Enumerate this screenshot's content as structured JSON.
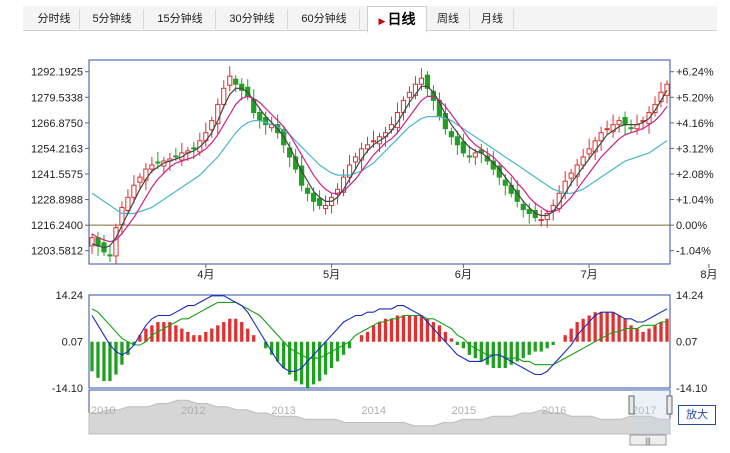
{
  "tabs": [
    {
      "label": "分时线",
      "active": false
    },
    {
      "label": "5分钟线",
      "active": false
    },
    {
      "label": "15分钟线",
      "active": false
    },
    {
      "label": "30分钟线",
      "active": false
    },
    {
      "label": "60分钟线",
      "active": false
    },
    {
      "label": "日线",
      "active": true
    },
    {
      "label": "周线",
      "active": false
    },
    {
      "label": "月线",
      "active": false
    }
  ],
  "zoom_label": "放大",
  "colors": {
    "up": "#e03030",
    "down": "#20a020",
    "ma_dark": "#444444",
    "ma_pink": "#d0208a",
    "ma_cyan": "#4ab8c8",
    "dif": "#1a2cc0",
    "dea": "#16a016",
    "frame": "#3050a0"
  },
  "chart_data": [
    {
      "type": "candlestick",
      "name": "price",
      "ylim": [
        1197,
        1298
      ],
      "y_ticks": [
        "1292.1925",
        "1279.5338",
        "1266.8750",
        "1254.2163",
        "1241.5575",
        "1228.8988",
        "1216.2400",
        "1203.5812"
      ],
      "y_tick_values": [
        1292.1925,
        1279.5338,
        1266.875,
        1254.2163,
        1241.5575,
        1228.8988,
        1216.24,
        1203.5812
      ],
      "pct_ticks": [
        "+6.24%",
        "+5.20%",
        "+4.16%",
        "+3.12%",
        "+2.08%",
        "+1.04%",
        "0.00%",
        "-1.04%"
      ],
      "base_line": 1216.24,
      "x_ticks": [
        {
          "label": "4月",
          "index": 19
        },
        {
          "label": "5月",
          "index": 40
        },
        {
          "label": "6月",
          "index": 62
        },
        {
          "label": "7月",
          "index": 83
        },
        {
          "label": "8月",
          "index": 103
        }
      ],
      "close": [
        1210,
        1206,
        1203,
        1201,
        1215,
        1225,
        1230,
        1236,
        1240,
        1244,
        1246,
        1247,
        1248,
        1249,
        1250,
        1252,
        1253,
        1254,
        1258,
        1262,
        1268,
        1276,
        1284,
        1290,
        1286,
        1283,
        1280,
        1272,
        1268,
        1266,
        1266,
        1262,
        1256,
        1250,
        1244,
        1236,
        1232,
        1228,
        1226,
        1226,
        1230,
        1234,
        1240,
        1246,
        1250,
        1254,
        1256,
        1258,
        1260,
        1262,
        1266,
        1272,
        1278,
        1282,
        1286,
        1289,
        1284,
        1278,
        1270,
        1264,
        1260,
        1256,
        1252,
        1250,
        1252,
        1252,
        1248,
        1244,
        1240,
        1236,
        1232,
        1228,
        1224,
        1222,
        1220,
        1219,
        1222,
        1226,
        1232,
        1238,
        1242,
        1246,
        1250,
        1254,
        1258,
        1262,
        1264,
        1266,
        1268,
        1266,
        1264,
        1266,
        1268,
        1272,
        1276,
        1282,
        1286
      ],
      "ma_dark": [
        1207,
        1206,
        1205,
        1206,
        1210,
        1216,
        1222,
        1228,
        1234,
        1239,
        1243,
        1245,
        1247,
        1248,
        1249,
        1250,
        1252,
        1253,
        1255,
        1258,
        1262,
        1268,
        1275,
        1281,
        1284,
        1284,
        1282,
        1278,
        1274,
        1270,
        1267,
        1264,
        1260,
        1255,
        1249,
        1243,
        1238,
        1233,
        1230,
        1228,
        1228,
        1230,
        1234,
        1239,
        1244,
        1249,
        1253,
        1256,
        1258,
        1260,
        1263,
        1267,
        1272,
        1277,
        1281,
        1285,
        1285,
        1282,
        1277,
        1271,
        1266,
        1262,
        1258,
        1255,
        1253,
        1252,
        1250,
        1247,
        1244,
        1240,
        1236,
        1232,
        1228,
        1225,
        1222,
        1221,
        1221,
        1223,
        1227,
        1232,
        1237,
        1241,
        1245,
        1249,
        1253,
        1257,
        1261,
        1263,
        1265,
        1266,
        1266,
        1266,
        1267,
        1269,
        1273,
        1278,
        1283
      ],
      "ma_pink": [
        1212,
        1210,
        1209,
        1208,
        1209,
        1212,
        1216,
        1220,
        1225,
        1230,
        1235,
        1239,
        1242,
        1245,
        1247,
        1248,
        1249,
        1250,
        1252,
        1254,
        1257,
        1261,
        1266,
        1271,
        1276,
        1279,
        1280,
        1279,
        1277,
        1274,
        1271,
        1268,
        1265,
        1261,
        1256,
        1251,
        1246,
        1241,
        1237,
        1234,
        1232,
        1232,
        1233,
        1236,
        1239,
        1243,
        1247,
        1251,
        1254,
        1257,
        1259,
        1262,
        1266,
        1270,
        1274,
        1278,
        1280,
        1280,
        1278,
        1275,
        1271,
        1267,
        1263,
        1259,
        1256,
        1254,
        1252,
        1250,
        1247,
        1244,
        1241,
        1237,
        1234,
        1230,
        1227,
        1225,
        1223,
        1223,
        1224,
        1227,
        1230,
        1234,
        1238,
        1242,
        1246,
        1250,
        1253,
        1256,
        1259,
        1261,
        1262,
        1263,
        1264,
        1266,
        1268,
        1271,
        1275
      ],
      "ma_cyan": [
        1232,
        1230,
        1228,
        1226,
        1224,
        1222,
        1222,
        1222,
        1223,
        1224,
        1225,
        1227,
        1229,
        1231,
        1233,
        1235,
        1237,
        1239,
        1241,
        1244,
        1247,
        1250,
        1254,
        1258,
        1262,
        1265,
        1267,
        1268,
        1268,
        1267,
        1266,
        1265,
        1263,
        1261,
        1258,
        1255,
        1252,
        1249,
        1246,
        1244,
        1242,
        1241,
        1241,
        1241,
        1242,
        1243,
        1245,
        1247,
        1250,
        1253,
        1256,
        1259,
        1262,
        1265,
        1267,
        1269,
        1270,
        1270,
        1270,
        1269,
        1268,
        1266,
        1264,
        1262,
        1260,
        1258,
        1256,
        1254,
        1252,
        1250,
        1248,
        1246,
        1244,
        1242,
        1240,
        1238,
        1236,
        1234,
        1233,
        1232,
        1232,
        1233,
        1234,
        1236,
        1238,
        1240,
        1242,
        1244,
        1246,
        1248,
        1249,
        1250,
        1251,
        1252,
        1254,
        1256,
        1258
      ]
    },
    {
      "type": "macd",
      "name": "macd",
      "ylim": [
        -14.1,
        14.24
      ],
      "y_ticks": [
        "14.24",
        "0.07",
        "-14.10"
      ],
      "y_tick_values": [
        14.24,
        0.07,
        -14.1
      ],
      "hist": [
        -9,
        -11,
        -12,
        -12,
        -10,
        -7,
        -4,
        -1,
        2,
        4,
        5,
        6,
        6,
        6,
        5,
        4,
        3,
        2,
        2,
        3,
        4,
        5,
        6,
        7,
        7,
        6,
        4,
        2,
        0,
        -2,
        -4,
        -6,
        -8,
        -10,
        -12,
        -13,
        -14,
        -13,
        -12,
        -10,
        -8,
        -6,
        -4,
        -2,
        0,
        2,
        3,
        5,
        6,
        7,
        7,
        8,
        8,
        8,
        8,
        8,
        7,
        6,
        5,
        3,
        1,
        -1,
        -2,
        -4,
        -5,
        -6,
        -7,
        -8,
        -8,
        -8,
        -7,
        -6,
        -5,
        -4,
        -3,
        -3,
        -2,
        -1,
        0,
        2,
        4,
        6,
        7,
        8,
        9,
        9,
        9,
        9,
        8,
        7,
        5,
        4,
        3,
        4,
        5,
        6,
        7
      ],
      "dif": [
        8,
        5,
        2,
        -1,
        -3,
        -4,
        -3,
        -1,
        2,
        5,
        7,
        8,
        8,
        8,
        9,
        10,
        11,
        11,
        12,
        13,
        14,
        14,
        14,
        13,
        12,
        11,
        9,
        6,
        3,
        0,
        -3,
        -6,
        -8,
        -9,
        -9,
        -8,
        -6,
        -4,
        -2,
        0,
        2,
        4,
        6,
        7,
        8,
        8,
        9,
        9,
        10,
        10,
        10,
        11,
        11,
        10,
        9,
        8,
        6,
        4,
        2,
        0,
        -2,
        -4,
        -5,
        -6,
        -6,
        -6,
        -5,
        -4,
        -4,
        -5,
        -6,
        -7,
        -8,
        -9,
        -10,
        -10,
        -9,
        -7,
        -5,
        -3,
        -1,
        2,
        4,
        6,
        8,
        9,
        9,
        9,
        8,
        7,
        7,
        6,
        6,
        7,
        8,
        9,
        10
      ],
      "dea": [
        10,
        9,
        7,
        5,
        3,
        1,
        0,
        -1,
        -1,
        0,
        2,
        3,
        4,
        5,
        6,
        7,
        7,
        8,
        9,
        10,
        11,
        12,
        12,
        12,
        12,
        11,
        10,
        9,
        8,
        6,
        4,
        2,
        0,
        -2,
        -3,
        -4,
        -5,
        -5,
        -5,
        -4,
        -3,
        -2,
        -1,
        0,
        2,
        3,
        4,
        5,
        6,
        6,
        7,
        7,
        8,
        8,
        8,
        8,
        7,
        7,
        6,
        5,
        4,
        2,
        1,
        -1,
        -2,
        -3,
        -4,
        -4,
        -4,
        -5,
        -5,
        -5,
        -6,
        -6,
        -7,
        -7,
        -7,
        -7,
        -6,
        -5,
        -4,
        -3,
        -2,
        -1,
        0,
        1,
        2,
        3,
        3,
        4,
        4,
        4,
        5,
        5,
        5,
        6,
        6
      ]
    },
    {
      "type": "area",
      "name": "navigator",
      "x_ticks": [
        "2010",
        "2012",
        "2013",
        "2014",
        "2015",
        "2016",
        "2017"
      ],
      "values": [
        6,
        6,
        7,
        7,
        8,
        8,
        8,
        9,
        9,
        10,
        10,
        9,
        9,
        8,
        8,
        7,
        7,
        6,
        6,
        5,
        5,
        5,
        4,
        4,
        4,
        4,
        3,
        3,
        3,
        3,
        3,
        3,
        3,
        2,
        2,
        2,
        3,
        3,
        4,
        4,
        4,
        5,
        5,
        5,
        6,
        6,
        7,
        6,
        6,
        5,
        5,
        5,
        4,
        4,
        4,
        5,
        5,
        5,
        4,
        4
      ]
    }
  ]
}
